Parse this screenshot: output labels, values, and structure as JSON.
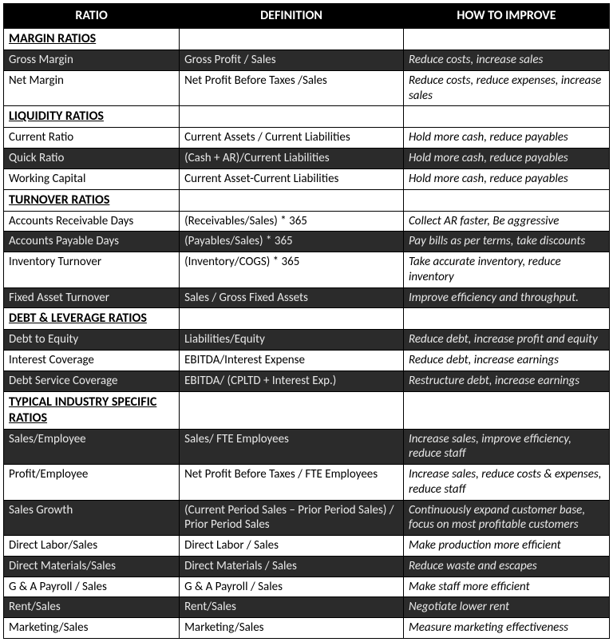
{
  "columns": [
    "RATIO",
    "DEFINITION",
    "HOW TO IMPROVE"
  ],
  "sections": [
    {
      "title": "MARGIN RATIOS",
      "rows": [
        {
          "shaded": true,
          "ratio": "Gross Margin",
          "definition": "Gross Profit / Sales",
          "improve": "Reduce costs, increase sales"
        },
        {
          "shaded": false,
          "ratio": "Net Margin",
          "definition": "Net Profit Before Taxes /Sales",
          "improve": "Reduce costs, reduce expenses, increase sales"
        }
      ]
    },
    {
      "title": "LIQUIDITY RATIOS",
      "rows": [
        {
          "shaded": false,
          "ratio": "Current Ratio",
          "definition": "Current Assets / Current Liabilities",
          "improve": "Hold more cash, reduce payables"
        },
        {
          "shaded": true,
          "ratio": "Quick Ratio",
          "definition": "(Cash + AR)/Current Liabilities",
          "improve": "Hold more cash, reduce payables"
        },
        {
          "shaded": false,
          "ratio": "Working Capital",
          "definition": "Current Asset-Current Liabilities",
          "improve": "Hold more cash, reduce payables"
        }
      ]
    },
    {
      "title": "TURNOVER RATIOS",
      "rows": [
        {
          "shaded": false,
          "ratio": "Accounts Receivable Days",
          "definition": "(Receivables/Sales) * 365",
          "improve": "Collect AR faster, Be aggressive"
        },
        {
          "shaded": true,
          "ratio": "Accounts Payable Days",
          "definition": "(Payables/Sales) * 365",
          "improve": "Pay bills as per terms, take discounts"
        },
        {
          "shaded": false,
          "ratio": "Inventory Turnover",
          "definition": "(Inventory/COGS) * 365",
          "improve": "Take accurate inventory, reduce inventory"
        },
        {
          "shaded": true,
          "ratio": "Fixed Asset Turnover",
          "definition": "Sales / Gross Fixed Assets",
          "improve": "Improve efficiency and throughput."
        }
      ]
    },
    {
      "title": "DEBT & LEVERAGE RATIOS",
      "rows": [
        {
          "shaded": true,
          "ratio": "Debt to Equity",
          "definition": "Liabilities/Equity",
          "improve": "Reduce debt, increase profit and equity"
        },
        {
          "shaded": false,
          "ratio": "Interest Coverage",
          "definition": "EBITDA/Interest Expense",
          "improve": "Reduce debt, increase earnings"
        },
        {
          "shaded": true,
          "ratio": "Debt Service Coverage",
          "definition": "EBITDA/ (CPLTD + Interest Exp.)",
          "improve": "Restructure debt, increase earnings"
        }
      ]
    },
    {
      "title": "TYPICAL INDUSTRY SPECIFIC RATIOS",
      "rows": [
        {
          "shaded": true,
          "ratio": "Sales/Employee",
          "definition": "Sales/ FTE Employees",
          "improve": "Increase sales, improve efficiency, reduce staff"
        },
        {
          "shaded": false,
          "ratio": "Profit/Employee",
          "definition": "Net Profit Before Taxes / FTE Employees",
          "improve": "Increase sales, reduce costs & expenses, reduce staff"
        },
        {
          "shaded": true,
          "ratio": "Sales Growth",
          "definition": "(Current Period Sales – Prior Period Sales) / Prior Period Sales",
          "improve": "Continuously expand customer base, focus on most profitable customers"
        },
        {
          "shaded": false,
          "ratio": "Direct Labor/Sales",
          "definition": "Direct Labor / Sales",
          "improve": "Make production more efficient"
        },
        {
          "shaded": true,
          "ratio": "Direct Materials/Sales",
          "definition": "Direct Materials / Sales",
          "improve": "Reduce waste and escapes"
        },
        {
          "shaded": false,
          "ratio": "G & A Payroll / Sales",
          "definition": "G & A Payroll / Sales",
          "improve": "Make staff more efficient"
        },
        {
          "shaded": true,
          "ratio": "Rent/Sales",
          "definition": "Rent/Sales",
          "improve": "Negotiate lower rent"
        },
        {
          "shaded": false,
          "ratio": "Marketing/Sales",
          "definition": "Marketing/Sales",
          "improve": "Measure marketing effectiveness"
        }
      ]
    }
  ]
}
